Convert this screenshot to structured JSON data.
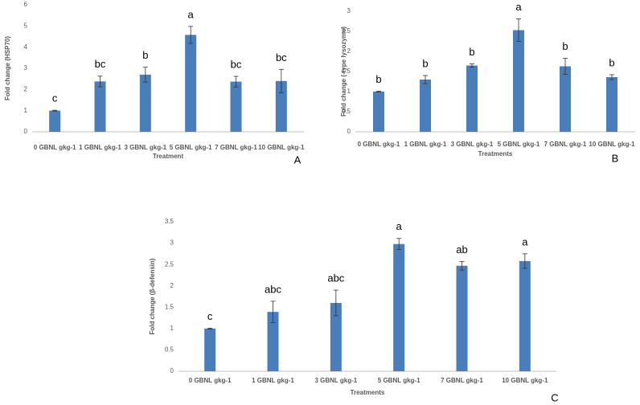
{
  "chart_data": [
    {
      "type": "bar",
      "panel_label": "A",
      "y_label": "Fold change (HSP70)",
      "x_label": "Treatment",
      "categories": [
        "0 GBNL gkg-1",
        "1 GBNL gkg-1",
        "3 GBNL gkg-1",
        "5 GBNL gkg-1",
        "7 GBNL gkg-1",
        "10 GBNL gkg-1"
      ],
      "values": [
        1.0,
        2.38,
        2.7,
        4.58,
        2.37,
        2.4
      ],
      "errors": [
        0.02,
        0.25,
        0.35,
        0.4,
        0.25,
        0.55
      ],
      "significance_labels": [
        "c",
        "bc",
        "b",
        "a",
        "bc",
        "bc"
      ],
      "color": "#4a7ebb",
      "ylim": [
        0,
        6
      ],
      "yticks": [
        0,
        1,
        2,
        3,
        4,
        5,
        6
      ]
    },
    {
      "type": "bar",
      "panel_label": "B",
      "y_label": "Fold change (-type lysozyme)",
      "x_label": "Treatments",
      "categories": [
        "0 GBNL gkg-1",
        "1 GBNL gkg-1",
        "3 GBNL gkg-1",
        "5 GBNL gkg-1",
        "7 GBNL gkg-1",
        "10 GBNL gkg-1"
      ],
      "values": [
        1.0,
        1.3,
        1.65,
        2.53,
        1.63,
        1.36
      ],
      "errors": [
        0.01,
        0.1,
        0.04,
        0.28,
        0.2,
        0.06
      ],
      "significance_labels": [
        "b",
        "b",
        "b",
        "a",
        "b",
        "b"
      ],
      "color": "#4a7ebb",
      "ylim": [
        0,
        3
      ],
      "yticks": [
        0,
        0.5,
        1,
        1.5,
        2,
        2.5,
        3
      ]
    },
    {
      "type": "bar",
      "panel_label": "C",
      "y_label": "Fold change (β-defensin)",
      "x_label": "Treatments",
      "categories": [
        "0 GBNL gkg-1",
        "1 GBNL gkg-1",
        "3 GBNL gkg-1",
        "5 GBNL gkg-1",
        "7 GBNL gkg-1",
        "10 GBNL gkg-1"
      ],
      "values": [
        1.0,
        1.39,
        1.6,
        2.98,
        2.47,
        2.58
      ],
      "errors": [
        0.01,
        0.25,
        0.3,
        0.13,
        0.1,
        0.17
      ],
      "significance_labels": [
        "c",
        "abc",
        "abc",
        "a",
        "ab",
        "a"
      ],
      "color": "#4a7ebb",
      "ylim": [
        0,
        3.5
      ],
      "yticks": [
        0,
        0.5,
        1,
        1.5,
        2,
        2.5,
        3,
        3.5
      ]
    }
  ]
}
